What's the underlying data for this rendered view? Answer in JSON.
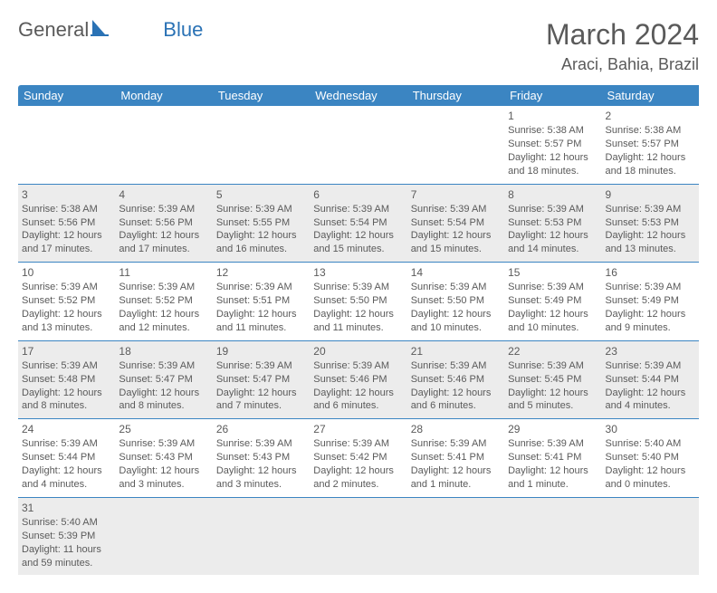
{
  "brand": {
    "part1": "General",
    "part2": "Blue"
  },
  "title": "March 2024",
  "location": "Araci, Bahia, Brazil",
  "colors": {
    "header_bg": "#3b85c2",
    "header_text": "#ffffff",
    "body_text": "#5a5a5a",
    "alt_row_bg": "#ececec",
    "rule": "#3b85c2"
  },
  "day_labels": [
    "Sunday",
    "Monday",
    "Tuesday",
    "Wednesday",
    "Thursday",
    "Friday",
    "Saturday"
  ],
  "weeks": [
    [
      null,
      null,
      null,
      null,
      null,
      {
        "n": "1",
        "sr": "Sunrise: 5:38 AM",
        "ss": "Sunset: 5:57 PM",
        "dl": "Daylight: 12 hours and 18 minutes."
      },
      {
        "n": "2",
        "sr": "Sunrise: 5:38 AM",
        "ss": "Sunset: 5:57 PM",
        "dl": "Daylight: 12 hours and 18 minutes."
      }
    ],
    [
      {
        "n": "3",
        "sr": "Sunrise: 5:38 AM",
        "ss": "Sunset: 5:56 PM",
        "dl": "Daylight: 12 hours and 17 minutes."
      },
      {
        "n": "4",
        "sr": "Sunrise: 5:39 AM",
        "ss": "Sunset: 5:56 PM",
        "dl": "Daylight: 12 hours and 17 minutes."
      },
      {
        "n": "5",
        "sr": "Sunrise: 5:39 AM",
        "ss": "Sunset: 5:55 PM",
        "dl": "Daylight: 12 hours and 16 minutes."
      },
      {
        "n": "6",
        "sr": "Sunrise: 5:39 AM",
        "ss": "Sunset: 5:54 PM",
        "dl": "Daylight: 12 hours and 15 minutes."
      },
      {
        "n": "7",
        "sr": "Sunrise: 5:39 AM",
        "ss": "Sunset: 5:54 PM",
        "dl": "Daylight: 12 hours and 15 minutes."
      },
      {
        "n": "8",
        "sr": "Sunrise: 5:39 AM",
        "ss": "Sunset: 5:53 PM",
        "dl": "Daylight: 12 hours and 14 minutes."
      },
      {
        "n": "9",
        "sr": "Sunrise: 5:39 AM",
        "ss": "Sunset: 5:53 PM",
        "dl": "Daylight: 12 hours and 13 minutes."
      }
    ],
    [
      {
        "n": "10",
        "sr": "Sunrise: 5:39 AM",
        "ss": "Sunset: 5:52 PM",
        "dl": "Daylight: 12 hours and 13 minutes."
      },
      {
        "n": "11",
        "sr": "Sunrise: 5:39 AM",
        "ss": "Sunset: 5:52 PM",
        "dl": "Daylight: 12 hours and 12 minutes."
      },
      {
        "n": "12",
        "sr": "Sunrise: 5:39 AM",
        "ss": "Sunset: 5:51 PM",
        "dl": "Daylight: 12 hours and 11 minutes."
      },
      {
        "n": "13",
        "sr": "Sunrise: 5:39 AM",
        "ss": "Sunset: 5:50 PM",
        "dl": "Daylight: 12 hours and 11 minutes."
      },
      {
        "n": "14",
        "sr": "Sunrise: 5:39 AM",
        "ss": "Sunset: 5:50 PM",
        "dl": "Daylight: 12 hours and 10 minutes."
      },
      {
        "n": "15",
        "sr": "Sunrise: 5:39 AM",
        "ss": "Sunset: 5:49 PM",
        "dl": "Daylight: 12 hours and 10 minutes."
      },
      {
        "n": "16",
        "sr": "Sunrise: 5:39 AM",
        "ss": "Sunset: 5:49 PM",
        "dl": "Daylight: 12 hours and 9 minutes."
      }
    ],
    [
      {
        "n": "17",
        "sr": "Sunrise: 5:39 AM",
        "ss": "Sunset: 5:48 PM",
        "dl": "Daylight: 12 hours and 8 minutes."
      },
      {
        "n": "18",
        "sr": "Sunrise: 5:39 AM",
        "ss": "Sunset: 5:47 PM",
        "dl": "Daylight: 12 hours and 8 minutes."
      },
      {
        "n": "19",
        "sr": "Sunrise: 5:39 AM",
        "ss": "Sunset: 5:47 PM",
        "dl": "Daylight: 12 hours and 7 minutes."
      },
      {
        "n": "20",
        "sr": "Sunrise: 5:39 AM",
        "ss": "Sunset: 5:46 PM",
        "dl": "Daylight: 12 hours and 6 minutes."
      },
      {
        "n": "21",
        "sr": "Sunrise: 5:39 AM",
        "ss": "Sunset: 5:46 PM",
        "dl": "Daylight: 12 hours and 6 minutes."
      },
      {
        "n": "22",
        "sr": "Sunrise: 5:39 AM",
        "ss": "Sunset: 5:45 PM",
        "dl": "Daylight: 12 hours and 5 minutes."
      },
      {
        "n": "23",
        "sr": "Sunrise: 5:39 AM",
        "ss": "Sunset: 5:44 PM",
        "dl": "Daylight: 12 hours and 4 minutes."
      }
    ],
    [
      {
        "n": "24",
        "sr": "Sunrise: 5:39 AM",
        "ss": "Sunset: 5:44 PM",
        "dl": "Daylight: 12 hours and 4 minutes."
      },
      {
        "n": "25",
        "sr": "Sunrise: 5:39 AM",
        "ss": "Sunset: 5:43 PM",
        "dl": "Daylight: 12 hours and 3 minutes."
      },
      {
        "n": "26",
        "sr": "Sunrise: 5:39 AM",
        "ss": "Sunset: 5:43 PM",
        "dl": "Daylight: 12 hours and 3 minutes."
      },
      {
        "n": "27",
        "sr": "Sunrise: 5:39 AM",
        "ss": "Sunset: 5:42 PM",
        "dl": "Daylight: 12 hours and 2 minutes."
      },
      {
        "n": "28",
        "sr": "Sunrise: 5:39 AM",
        "ss": "Sunset: 5:41 PM",
        "dl": "Daylight: 12 hours and 1 minute."
      },
      {
        "n": "29",
        "sr": "Sunrise: 5:39 AM",
        "ss": "Sunset: 5:41 PM",
        "dl": "Daylight: 12 hours and 1 minute."
      },
      {
        "n": "30",
        "sr": "Sunrise: 5:40 AM",
        "ss": "Sunset: 5:40 PM",
        "dl": "Daylight: 12 hours and 0 minutes."
      }
    ],
    [
      {
        "n": "31",
        "sr": "Sunrise: 5:40 AM",
        "ss": "Sunset: 5:39 PM",
        "dl": "Daylight: 11 hours and 59 minutes."
      },
      null,
      null,
      null,
      null,
      null,
      null
    ]
  ]
}
